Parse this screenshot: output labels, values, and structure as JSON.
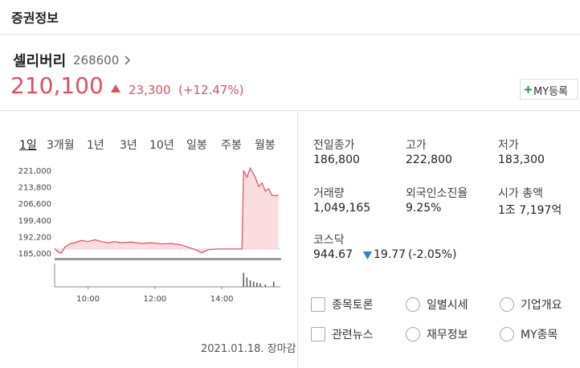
{
  "header": {
    "title": "증권정보"
  },
  "stock": {
    "name": "셀리버리",
    "code": "268600",
    "price": "210,100",
    "change": "23,300",
    "change_rate": "(+12.47%)",
    "register_button": "MY등록"
  },
  "tabs": [
    "1일",
    "3개월",
    "1년",
    "3년",
    "10년",
    "일봉",
    "주봉",
    "월봉"
  ],
  "chart_data": {
    "type": "line",
    "x": [
      9.0,
      9.1,
      9.2,
      9.3,
      9.45,
      9.6,
      9.8,
      10.0,
      10.2,
      10.4,
      10.6,
      10.8,
      11.0,
      11.3,
      11.6,
      11.9,
      12.2,
      12.5,
      12.8,
      13.0,
      13.2,
      13.4,
      13.6,
      13.9,
      14.2,
      14.6,
      14.65,
      14.75,
      14.85,
      15.0,
      15.1,
      15.2,
      15.3,
      15.4,
      15.5,
      15.7
    ],
    "values": [
      187000,
      185500,
      185000,
      187500,
      189000,
      189500,
      190500,
      190000,
      190800,
      190000,
      189500,
      190000,
      189500,
      189800,
      189200,
      189500,
      189000,
      189200,
      188500,
      187500,
      186500,
      185200,
      186500,
      186800,
      186800,
      186800,
      221000,
      218000,
      222000,
      218000,
      214000,
      215500,
      212000,
      213000,
      210100,
      210100
    ],
    "color": "#e0505b",
    "reference_value": 186800,
    "xlim": [
      9,
      15.75
    ],
    "ylim": [
      183951,
      222398
    ],
    "yticks": [
      {
        "value": 221000,
        "label": "221,000"
      },
      {
        "value": 213800,
        "label": "213,800"
      },
      {
        "value": 206600,
        "label": "206,600"
      },
      {
        "value": 199400,
        "label": "199,400"
      },
      {
        "value": 192200,
        "label": "192,200"
      },
      {
        "value": 185000,
        "label": "185,000"
      }
    ],
    "xticks": [
      {
        "value": 10,
        "label": "10:00"
      },
      {
        "value": 12,
        "label": "12:00"
      },
      {
        "value": 14,
        "label": "14:00"
      }
    ],
    "volume": {
      "x": [
        14.65,
        14.75,
        14.85,
        14.95,
        15.05,
        15.15,
        15.3,
        15.55
      ],
      "values": [
        60,
        40,
        28,
        22,
        18,
        15,
        10,
        22
      ],
      "ylim": [
        0,
        100
      ],
      "color": "#555555"
    }
  },
  "date_label": "2021.01.18. 장마감",
  "summary": [
    [
      {
        "label": "전일종가",
        "value": "186,800"
      },
      {
        "label": "고가",
        "value": "222,800"
      },
      {
        "label": "저가",
        "value": "183,300"
      }
    ],
    [
      {
        "label": "거래량",
        "value": "1,049,165"
      },
      {
        "label": "외국인소진율",
        "value": "9.25%"
      },
      {
        "label": "시가 총액",
        "value": "1조 7,197억"
      }
    ]
  ],
  "index": {
    "label": "코스닥",
    "value": "944.67",
    "change": "19.77",
    "change_rate": "(-2.05%)"
  },
  "links": [
    "종목토론",
    "일별시세",
    "기업개요",
    "관련뉴스",
    "재무정보",
    "MY종목"
  ]
}
